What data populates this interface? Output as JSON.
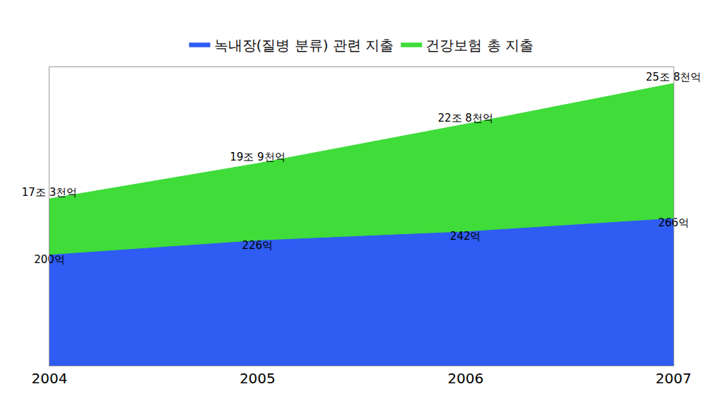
{
  "chart_data": {
    "type": "area",
    "categories": [
      "2004",
      "2005",
      "2006",
      "2007"
    ],
    "series": [
      {
        "name": "녹내장(질병 분류) 관련 지출",
        "color": "#2f5cf2",
        "axis": "y2",
        "values": [
          200,
          226,
          242,
          266
        ],
        "value_labels": [
          "200억",
          "226억",
          "242억",
          "266억"
        ]
      },
      {
        "name": "건강보험 총 지출",
        "color": "#3fdc3a",
        "values": [
          173000,
          199000,
          228000,
          258000
        ],
        "value_labels": [
          "17조 3천억",
          "19조 9천억",
          "22조 8천억",
          "25조 8천억"
        ]
      }
    ],
    "ylim": [
      50000,
      270000
    ],
    "y2lim": [
      0,
      540
    ],
    "legend": "top",
    "data_labels": true,
    "tick_labels": "x"
  }
}
